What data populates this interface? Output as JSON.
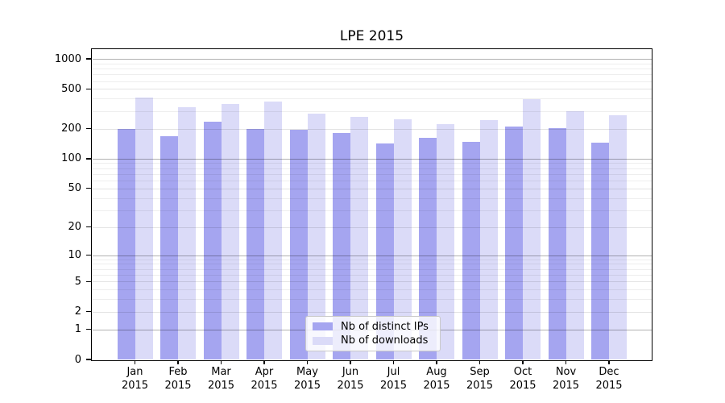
{
  "figure": {
    "background": "#ffffff",
    "text_color": "#000000"
  },
  "chart_data": {
    "type": "bar",
    "title": "LPE 2015",
    "categories": [
      "Jan 2015",
      "Feb 2015",
      "Mar 2015",
      "Apr 2015",
      "May 2015",
      "Jun 2015",
      "Jul 2015",
      "Aug 2015",
      "Sep 2015",
      "Oct 2015",
      "Nov 2015",
      "Dec 2015"
    ],
    "series": [
      {
        "name": "Nb of distinct IPs",
        "color": "#a5a5f0",
        "values": [
          199,
          169,
          236,
          198,
          196,
          181,
          143,
          162,
          149,
          212,
          201,
          145
        ]
      },
      {
        "name": "Nb of downloads",
        "color": "#dbdbf8",
        "values": [
          408,
          327,
          355,
          374,
          282,
          263,
          250,
          223,
          245,
          394,
          302,
          272
        ]
      }
    ],
    "xlabel": "",
    "ylabel": "",
    "yscale": "log1p",
    "ylim": [
      0,
      1280
    ],
    "yticks": [
      0,
      1,
      2,
      5,
      10,
      20,
      50,
      100,
      200,
      500,
      1000
    ],
    "grid": true,
    "legend_position": "lower center"
  }
}
